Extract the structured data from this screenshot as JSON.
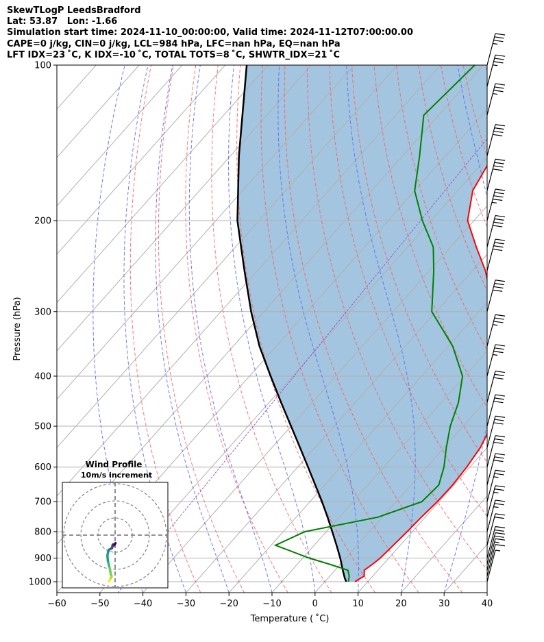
{
  "header": {
    "line1": "SkewTLogP LeedsBradford",
    "line2": "Lat: 53.87   Lon: -1.66",
    "line3": "Simulation start time: 2024-11-10_00:00:00, Valid time: 2024-11-12T07:00:00.00",
    "line4": "CAPE=0 j/kg, CIN=0 j/kg, LCL=984 hPa, LFC=nan hPa, EQ=nan hPa",
    "line5": "LFT IDX=23 ˚C, K IDX=-10 ˚C, TOTAL TOTS=8 ˚C, SHWTR_IDX=21 ˚C"
  },
  "chart_data": {
    "type": "line",
    "subtype": "skew-T log-P diagram",
    "xlabel": "Temperature ( ˚C)",
    "ylabel": "Pressure (hPa)",
    "xlim": [
      -60,
      40
    ],
    "ylim": [
      1050,
      100
    ],
    "y_scale": "log",
    "x_ticks": [
      "−60",
      "−50",
      "−40",
      "−30",
      "−20",
      "−10",
      "0",
      "10",
      "20",
      "30",
      "40"
    ],
    "y_ticks": [
      "100",
      "200",
      "300",
      "400",
      "500",
      "600",
      "700",
      "800",
      "900",
      "1000"
    ],
    "grid": true,
    "temperature": {
      "color": "#ff0000",
      "points": [
        [
          1000,
          7.0
        ],
        [
          975,
          8.0
        ],
        [
          950,
          6.8
        ],
        [
          925,
          7.5
        ],
        [
          900,
          8.0
        ],
        [
          850,
          8.4
        ],
        [
          800,
          8.8
        ],
        [
          750,
          9.1
        ],
        [
          700,
          9.6
        ],
        [
          650,
          9.7
        ],
        [
          600,
          9.3
        ],
        [
          550,
          8.4
        ],
        [
          500,
          6.5
        ],
        [
          450,
          3.5
        ],
        [
          400,
          -0.5
        ],
        [
          350,
          -7.5
        ],
        [
          300,
          -16.5
        ],
        [
          250,
          -27.0
        ],
        [
          225,
          -34.0
        ],
        [
          200,
          -41.5
        ],
        [
          175,
          -46.5
        ],
        [
          150,
          -49.0
        ],
        [
          125,
          -51.5
        ],
        [
          100,
          -58.0
        ]
      ]
    },
    "dewpoint": {
      "color": "#008000",
      "points": [
        [
          1000,
          5.5
        ],
        [
          975,
          4.5
        ],
        [
          950,
          3.0
        ],
        [
          925,
          -2.5
        ],
        [
          900,
          -8.5
        ],
        [
          850,
          -19.0
        ],
        [
          800,
          -15.0
        ],
        [
          750,
          -1.0
        ],
        [
          700,
          6.0
        ],
        [
          650,
          6.5
        ],
        [
          600,
          4.0
        ],
        [
          550,
          0.5
        ],
        [
          500,
          -3.0
        ],
        [
          450,
          -6.0
        ],
        [
          400,
          -10.5
        ],
        [
          350,
          -19.0
        ],
        [
          300,
          -31.0
        ],
        [
          250,
          -39.0
        ],
        [
          225,
          -44.0
        ],
        [
          200,
          -52.0
        ],
        [
          175,
          -60.0
        ],
        [
          150,
          -66.0
        ],
        [
          125,
          -73.5
        ],
        [
          100,
          -72.0
        ]
      ]
    },
    "parcel": {
      "color": "#000000",
      "points": [
        [
          1000,
          5.0
        ],
        [
          984,
          3.9
        ],
        [
          950,
          1.8
        ],
        [
          900,
          -1.3
        ],
        [
          850,
          -4.8
        ],
        [
          800,
          -8.6
        ],
        [
          750,
          -12.7
        ],
        [
          700,
          -17.2
        ],
        [
          650,
          -22.2
        ],
        [
          600,
          -27.6
        ],
        [
          550,
          -33.5
        ],
        [
          500,
          -40.0
        ],
        [
          450,
          -47.2
        ],
        [
          400,
          -55.1
        ],
        [
          350,
          -63.9
        ],
        [
          300,
          -73.0
        ],
        [
          250,
          -83.0
        ],
        [
          200,
          -95.0
        ],
        [
          150,
          -108.0
        ],
        [
          100,
          -125.0
        ]
      ]
    },
    "wind_barbs": [
      {
        "p": 1000,
        "speed_kt": 5
      },
      {
        "p": 975,
        "speed_kt": 10
      },
      {
        "p": 950,
        "speed_kt": 15
      },
      {
        "p": 925,
        "speed_kt": 20
      },
      {
        "p": 900,
        "speed_kt": 20
      },
      {
        "p": 850,
        "speed_kt": 20
      },
      {
        "p": 800,
        "speed_kt": 25
      },
      {
        "p": 750,
        "speed_kt": 25
      },
      {
        "p": 700,
        "speed_kt": 25
      },
      {
        "p": 650,
        "speed_kt": 30
      },
      {
        "p": 600,
        "speed_kt": 30
      },
      {
        "p": 550,
        "speed_kt": 30
      },
      {
        "p": 500,
        "speed_kt": 30
      },
      {
        "p": 450,
        "speed_kt": 30
      },
      {
        "p": 400,
        "speed_kt": 35
      },
      {
        "p": 350,
        "speed_kt": 35
      },
      {
        "p": 300,
        "speed_kt": 40
      },
      {
        "p": 250,
        "speed_kt": 40
      },
      {
        "p": 225,
        "speed_kt": 40
      },
      {
        "p": 200,
        "speed_kt": 45
      },
      {
        "p": 175,
        "speed_kt": 40
      },
      {
        "p": 150,
        "speed_kt": 40
      },
      {
        "p": 125,
        "speed_kt": 35
      },
      {
        "p": 110,
        "speed_kt": 35
      },
      {
        "p": 100,
        "speed_kt": 35
      }
    ],
    "inset": {
      "title_line1": "Wind Profile",
      "title_line2": "10m/s increment",
      "type": "hodograph",
      "colormap": "viridis",
      "points": [
        [
          -3.5,
          -27
        ],
        [
          -3,
          -26
        ],
        [
          -2.5,
          -25
        ],
        [
          -2,
          -24
        ],
        [
          -2.5,
          -23
        ],
        [
          -3,
          -20
        ],
        [
          -3.5,
          -18
        ],
        [
          -4.2,
          -15
        ],
        [
          -4.5,
          -12
        ],
        [
          -4,
          -9.5
        ],
        [
          -3.5,
          -8.5
        ],
        [
          -2.5,
          -8
        ],
        [
          -1.8,
          -7.5
        ],
        [
          -1.5,
          -6
        ],
        [
          -1.2,
          -5.5
        ],
        [
          -0.8,
          -6
        ],
        [
          -0.3,
          -5.5
        ],
        [
          0.2,
          -4.7
        ]
      ]
    }
  }
}
